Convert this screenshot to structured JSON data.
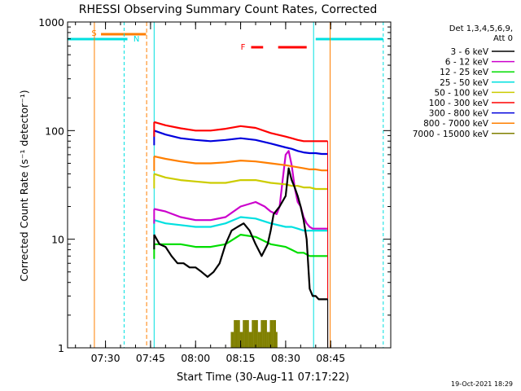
{
  "chart_data": {
    "type": "line",
    "title": "RHESSI Observing Summary Count Rates, Corrected",
    "xlabel": "Start Time (30-Aug-11 07:17:22)",
    "ylabel": "Corrected Count Rate (s⁻¹ detector⁻¹)",
    "yscale": "log",
    "ylim": [
      1,
      1000
    ],
    "xlim_minutes": [
      437.37,
      545
    ],
    "x_tick_labels": [
      "07:30",
      "07:45",
      "08:00",
      "08:15",
      "08:30",
      "08:45"
    ],
    "x_tick_minutes": [
      450,
      465,
      480,
      495,
      510,
      525
    ],
    "y_tick_labels": [
      "1",
      "10",
      "100",
      "1000"
    ],
    "y_tick_values": [
      1,
      10,
      100,
      1000
    ],
    "legend_header": [
      "Det 1,3,4,5,6,9,",
      "Att 0"
    ],
    "legend_position": "right, outside plot",
    "timestamp": "19-Oct-2021 18:29",
    "series": [
      {
        "name": "3 - 6 keV",
        "color": "#000000",
        "x": [
          466.2,
          468,
          470,
          472,
          474,
          476,
          478,
          480,
          482,
          484,
          486,
          488,
          490,
          492,
          494,
          496,
          498,
          500,
          502,
          504,
          505,
          506,
          508,
          510,
          511,
          512,
          513,
          514,
          515,
          516,
          517,
          518,
          519,
          520,
          521,
          522,
          523,
          524
        ],
        "y": [
          11,
          9,
          8.5,
          7,
          6,
          6,
          5.5,
          5.5,
          5,
          4.5,
          5,
          6,
          9,
          12,
          13,
          14,
          12,
          9,
          7,
          9,
          12,
          17,
          20,
          25,
          45,
          35,
          30,
          25,
          20,
          15,
          10,
          3.5,
          3,
          3,
          2.8,
          2.8,
          2.8,
          2.8
        ]
      },
      {
        "name": "6 - 12 keV",
        "color": "#cc00cc",
        "x": [
          466.2,
          470,
          475,
          480,
          485,
          490,
          495,
          500,
          503,
          505,
          507,
          508,
          509,
          510,
          511,
          512,
          513,
          514,
          515,
          516,
          517,
          518,
          519,
          520,
          521,
          522,
          523,
          524
        ],
        "y": [
          19,
          18,
          16,
          15,
          15,
          16,
          20,
          22,
          20,
          18,
          17,
          20,
          35,
          60,
          65,
          48,
          30,
          22,
          20,
          16,
          14,
          13,
          12.5,
          12.5,
          12.5,
          12.5,
          12.5,
          12.5
        ]
      },
      {
        "name": "12 - 25 keV",
        "color": "#00dd00",
        "x": [
          466.2,
          470,
          475,
          480,
          485,
          490,
          495,
          500,
          505,
          510,
          512,
          514,
          516,
          518,
          520,
          522,
          524
        ],
        "y": [
          9,
          9,
          9,
          8.5,
          8.5,
          9,
          11,
          10.5,
          9,
          8.5,
          8,
          7.5,
          7.5,
          7,
          7,
          7,
          7
        ]
      },
      {
        "name": "25 - 50 keV",
        "color": "#00e0e0",
        "x": [
          466.2,
          470,
          475,
          480,
          485,
          490,
          495,
          500,
          505,
          510,
          512,
          514,
          516,
          518,
          520,
          522,
          524
        ],
        "y": [
          15,
          14,
          13.5,
          13,
          13,
          14,
          16,
          15.5,
          14,
          13,
          13,
          12.5,
          12,
          12,
          12,
          12,
          12
        ]
      },
      {
        "name": "50 - 100 keV",
        "color": "#cccc00",
        "x": [
          466.2,
          470,
          475,
          480,
          485,
          490,
          495,
          500,
          505,
          510,
          512,
          514,
          516,
          518,
          520,
          522,
          524
        ],
        "y": [
          40,
          37,
          35,
          34,
          33,
          33,
          35,
          35,
          33,
          32,
          31,
          31,
          30,
          30,
          29,
          29,
          29
        ]
      },
      {
        "name": "100 - 300 keV",
        "color": "#ff0000",
        "x": [
          466.2,
          470,
          475,
          480,
          485,
          490,
          495,
          500,
          505,
          510,
          512,
          514,
          516,
          518,
          520,
          522,
          524
        ],
        "y": [
          120,
          112,
          105,
          100,
          100,
          104,
          110,
          106,
          95,
          88,
          85,
          82,
          80,
          80,
          80,
          80,
          80
        ]
      },
      {
        "name": "300 - 800 keV",
        "color": "#0000dd",
        "x": [
          466.2,
          470,
          475,
          480,
          485,
          490,
          495,
          500,
          505,
          510,
          512,
          514,
          516,
          518,
          520,
          522,
          524
        ],
        "y": [
          100,
          92,
          85,
          82,
          80,
          82,
          85,
          82,
          76,
          70,
          68,
          65,
          63,
          62,
          62,
          61,
          61
        ]
      },
      {
        "name": "800 - 7000 keV",
        "color": "#ff7f00",
        "x": [
          466.2,
          470,
          475,
          480,
          485,
          490,
          495,
          500,
          505,
          510,
          512,
          514,
          516,
          518,
          520,
          522,
          524
        ],
        "y": [
          58,
          55,
          52,
          50,
          50,
          51,
          53,
          52,
          50,
          48,
          47,
          46,
          45,
          44,
          44,
          43,
          43
        ]
      },
      {
        "name": "7000 - 15000 keV",
        "color": "#808000",
        "x": [
          492,
          495,
          498,
          501,
          504,
          507
        ],
        "y": [
          1.8,
          1.8,
          1.8,
          1.8,
          1.8,
          1.8
        ]
      }
    ],
    "flags": [
      {
        "label": "S",
        "color": "#ff7f00"
      },
      {
        "label": "N",
        "color": "#00e0e0"
      },
      {
        "label": "F",
        "color": "#ff0000"
      }
    ]
  }
}
